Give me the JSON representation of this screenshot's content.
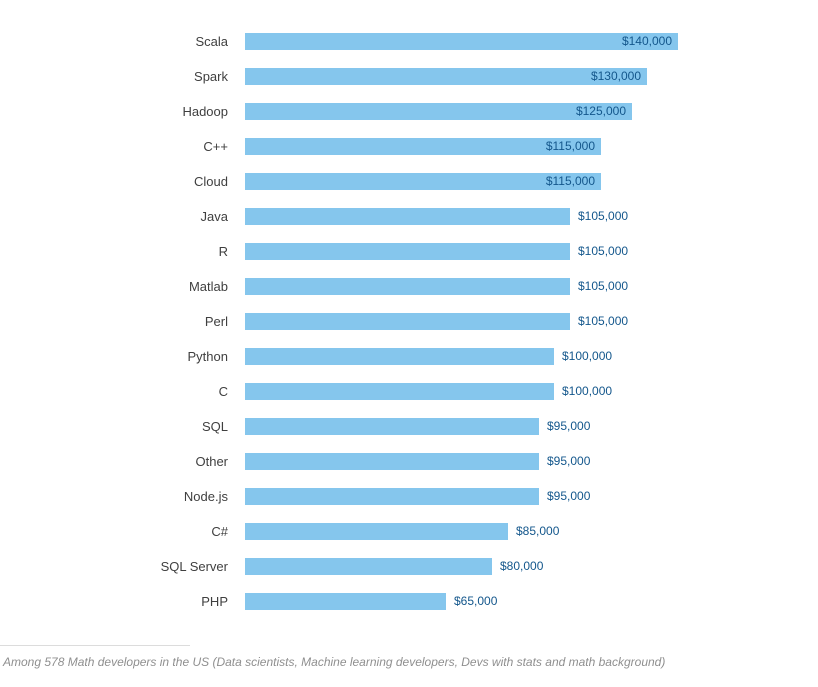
{
  "chart_data": {
    "type": "bar",
    "orientation": "horizontal",
    "title": "",
    "xlabel": "",
    "ylabel": "",
    "categories": [
      "Scala",
      "Spark",
      "Hadoop",
      "C++",
      "Cloud",
      "Java",
      "R",
      "Matlab",
      "Perl",
      "Python",
      "C",
      "SQL",
      "Other",
      "Node.js",
      "C#",
      "SQL Server",
      "PHP"
    ],
    "values": [
      140000,
      130000,
      125000,
      115000,
      115000,
      105000,
      105000,
      105000,
      105000,
      100000,
      100000,
      95000,
      95000,
      95000,
      85000,
      80000,
      65000
    ],
    "value_labels": [
      "$140,000",
      "$130,000",
      "$125,000",
      "$115,000",
      "$115,000",
      "$105,000",
      "$105,000",
      "$105,000",
      "$105,000",
      "$100,000",
      "$100,000",
      "$95,000",
      "$95,000",
      "$95,000",
      "$85,000",
      "$80,000",
      "$65,000"
    ],
    "xlim": [
      0,
      140000
    ],
    "grid": false,
    "legend": "none",
    "bar_color": "#85c6ed",
    "value_label_color": "#14578c",
    "label_inside_min": 115000
  },
  "footer": {
    "note": "Among 578 Math developers in the US (Data scientists, Machine learning developers, Devs with stats and math background)"
  }
}
